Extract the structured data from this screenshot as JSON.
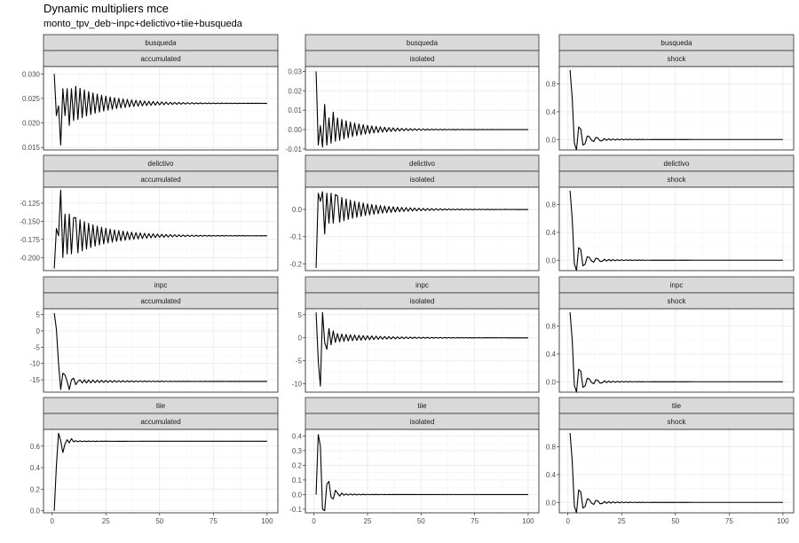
{
  "title": "Dynamic multipliers mce",
  "subtitle": "monto_tpv_deb~inpc+delictivo+tiie+busqueda",
  "chart_data": {
    "type": "line",
    "layout": "facet-grid",
    "row_facets": [
      "busqueda",
      "delictivo",
      "inpc",
      "tiie"
    ],
    "col_facets": [
      "accumulated",
      "isolated",
      "shock"
    ],
    "x_range": [
      1,
      100
    ],
    "x_ticks": [
      0,
      25,
      50,
      75,
      100
    ],
    "grid": true,
    "panels": [
      {
        "row": "busqueda",
        "col": "accumulated",
        "ylim": [
          0.0145,
          0.0315
        ],
        "y_ticks": [
          0.015,
          0.02,
          0.025,
          0.03
        ],
        "y_tick_labels": [
          "0.015",
          "0.020",
          "0.025",
          "0.030"
        ],
        "model": {
          "kind": "oscillating",
          "steady": 0.024,
          "start": [
            0.03,
            0.0215,
            0.0235,
            0.0155,
            0.027,
            0.0215,
            0.027,
            0.0195,
            0.027,
            0.0205
          ],
          "amp": 0.0035,
          "decay": 0.94
        }
      },
      {
        "row": "busqueda",
        "col": "isolated",
        "ylim": [
          -0.0105,
          0.0325
        ],
        "y_ticks": [
          -0.01,
          0.0,
          0.01,
          0.02,
          0.03
        ],
        "y_tick_labels": [
          "-0.01",
          "0.00",
          "0.01",
          "0.02",
          "0.03"
        ],
        "model": {
          "kind": "oscillating",
          "steady": 0.0,
          "start": [
            0.03,
            -0.008,
            0.002,
            -0.009,
            0.013,
            -0.008,
            0.006,
            -0.007,
            0.009,
            -0.006
          ],
          "amp": 0.006,
          "decay": 0.93
        }
      },
      {
        "row": "busqueda",
        "col": "shock",
        "ylim": [
          -0.15,
          1.05
        ],
        "y_ticks": [
          0.0,
          0.4,
          0.8
        ],
        "y_tick_labels": [
          "0.0",
          "0.4",
          "0.8"
        ],
        "model": {
          "kind": "damped",
          "steady": 0.0,
          "start": [
            1.0,
            0.6,
            -0.05,
            -0.15,
            0.18,
            0.15,
            -0.08,
            -0.06,
            0.05,
            0.04,
            -0.01,
            -0.03,
            0.03,
            0.02,
            -0.02
          ],
          "amp": 0.015,
          "decay": 0.9
        }
      },
      {
        "row": "delictivo",
        "col": "accumulated",
        "ylim": [
          -0.218,
          -0.103
        ],
        "y_ticks": [
          -0.2,
          -0.175,
          -0.15,
          -0.125
        ],
        "y_tick_labels": [
          "-0.200",
          "-0.175",
          "-0.150",
          "-0.125"
        ],
        "model": {
          "kind": "oscillating",
          "steady": -0.17,
          "start": [
            -0.215,
            -0.16,
            -0.17,
            -0.107,
            -0.2,
            -0.14,
            -0.195,
            -0.14,
            -0.195,
            -0.145
          ],
          "amp": 0.025,
          "decay": 0.94
        }
      },
      {
        "row": "delictivo",
        "col": "isolated",
        "ylim": [
          -0.225,
          0.082
        ],
        "y_ticks": [
          -0.2,
          -0.1,
          0.0
        ],
        "y_tick_labels": [
          "-0.2",
          "-0.1",
          "0.0"
        ],
        "model": {
          "kind": "oscillating",
          "steady": 0.0,
          "start": [
            -0.215,
            0.06,
            0.03,
            0.065,
            -0.09,
            0.06,
            -0.05,
            0.06,
            -0.05,
            0.055
          ],
          "amp": 0.05,
          "decay": 0.94
        }
      },
      {
        "row": "delictivo",
        "col": "shock",
        "ylim": [
          -0.15,
          1.05
        ],
        "y_ticks": [
          0.0,
          0.4,
          0.8
        ],
        "y_tick_labels": [
          "0.0",
          "0.4",
          "0.8"
        ],
        "model": {
          "kind": "damped",
          "steady": 0.0,
          "start": [
            1.0,
            0.6,
            -0.05,
            -0.15,
            0.18,
            0.15,
            -0.08,
            -0.06,
            0.05,
            0.04,
            -0.01,
            -0.03,
            0.03,
            0.02,
            -0.02
          ],
          "amp": 0.015,
          "decay": 0.9
        }
      },
      {
        "row": "inpc",
        "col": "accumulated",
        "ylim": [
          -18.8,
          6.8
        ],
        "y_ticks": [
          -15,
          -10,
          -5,
          0,
          5
        ],
        "y_tick_labels": [
          "-15",
          "-10",
          "-5",
          "0",
          "5"
        ],
        "model": {
          "kind": "damped",
          "steady": -15.5,
          "start": [
            5.5,
            0.5,
            -10.0,
            -18.0,
            -13.0,
            -13.5,
            -15.5,
            -18.0,
            -15.0,
            -14.5,
            -16.5,
            -15.5,
            -15.0,
            -16.0
          ],
          "amp": 0.5,
          "decay": 0.95
        }
      },
      {
        "row": "inpc",
        "col": "isolated",
        "ylim": [
          -11.8,
          6.3
        ],
        "y_ticks": [
          -10,
          -5,
          0,
          5
        ],
        "y_tick_labels": [
          "-10",
          "-5",
          "0",
          "5"
        ],
        "model": {
          "kind": "oscillating",
          "steady": 0.0,
          "start": [
            5.5,
            -5.0,
            -10.5,
            5.5,
            -1.0,
            -2.5,
            2.0,
            -1.5,
            1.5,
            -1.0
          ],
          "amp": 0.9,
          "decay": 0.95
        }
      },
      {
        "row": "inpc",
        "col": "shock",
        "ylim": [
          -0.15,
          1.05
        ],
        "y_ticks": [
          0.0,
          0.4,
          0.8
        ],
        "y_tick_labels": [
          "0.0",
          "0.4",
          "0.8"
        ],
        "model": {
          "kind": "damped",
          "steady": 0.0,
          "start": [
            1.0,
            0.6,
            -0.05,
            -0.15,
            0.18,
            0.15,
            -0.08,
            -0.06,
            0.05,
            0.04,
            -0.01,
            -0.03,
            0.03,
            0.02,
            -0.02
          ],
          "amp": 0.015,
          "decay": 0.9
        }
      },
      {
        "row": "tiie",
        "col": "accumulated",
        "ylim": [
          -0.02,
          0.755
        ],
        "y_ticks": [
          0.0,
          0.2,
          0.4,
          0.6
        ],
        "y_tick_labels": [
          "0.0",
          "0.2",
          "0.4",
          "0.6"
        ],
        "model": {
          "kind": "damped",
          "steady": 0.645,
          "start": [
            0.0,
            0.42,
            0.72,
            0.65,
            0.54,
            0.62,
            0.66,
            0.63,
            0.67,
            0.64,
            0.65
          ],
          "amp": 0.004,
          "decay": 0.9
        }
      },
      {
        "row": "tiie",
        "col": "isolated",
        "ylim": [
          -0.125,
          0.445
        ],
        "y_ticks": [
          -0.1,
          0.0,
          0.1,
          0.2,
          0.3,
          0.4
        ],
        "y_tick_labels": [
          "-0.1",
          "0.0",
          "0.1",
          "0.2",
          "0.3",
          "0.4"
        ],
        "model": {
          "kind": "damped",
          "steady": 0.0,
          "start": [
            0.0,
            0.41,
            0.33,
            -0.1,
            -0.11,
            0.07,
            0.09,
            -0.02,
            -0.03,
            0.03,
            0.01,
            -0.01,
            0.01
          ],
          "amp": 0.005,
          "decay": 0.9
        }
      },
      {
        "row": "tiie",
        "col": "shock",
        "ylim": [
          -0.15,
          1.05
        ],
        "y_ticks": [
          0.0,
          0.4,
          0.8
        ],
        "y_tick_labels": [
          "0.0",
          "0.4",
          "0.8"
        ],
        "model": {
          "kind": "damped",
          "steady": 0.0,
          "start": [
            1.0,
            0.6,
            -0.05,
            -0.15,
            0.18,
            0.15,
            -0.08,
            -0.06,
            0.05,
            0.04,
            -0.01,
            -0.03,
            0.03,
            0.02,
            -0.02
          ],
          "amp": 0.015,
          "decay": 0.9
        }
      }
    ]
  }
}
